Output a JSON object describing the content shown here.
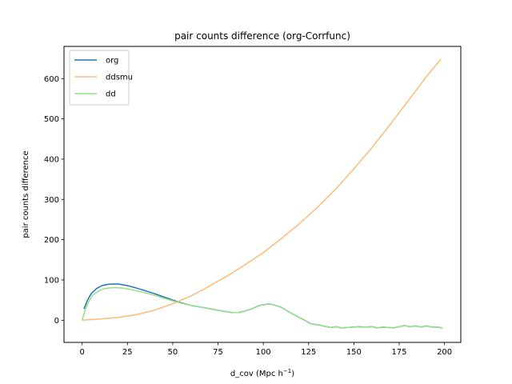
{
  "chart_data": {
    "type": "line",
    "title": "pair counts difference (org-Corrfunc)",
    "xlabel": "d_cov (Mpc h",
    "xlabel_sup": "−1",
    "xlabel_close": ")",
    "ylabel": "pair counts difference",
    "xlim": [
      -10,
      209
    ],
    "ylim": [
      -55,
      680
    ],
    "xticks": [
      0,
      25,
      50,
      75,
      100,
      125,
      150,
      175,
      200
    ],
    "yticks": [
      0,
      100,
      200,
      300,
      400,
      500,
      600
    ],
    "legend_position": "upper-left",
    "series": [
      {
        "name": "org",
        "color": "#1f77b4",
        "points": [
          [
            1,
            28
          ],
          [
            3,
            50
          ],
          [
            5,
            66
          ],
          [
            8,
            79
          ],
          [
            11,
            86
          ],
          [
            14,
            89
          ],
          [
            17,
            90
          ],
          [
            20,
            90
          ],
          [
            25,
            86
          ],
          [
            30,
            80
          ],
          [
            35,
            73
          ],
          [
            40,
            66
          ],
          [
            45,
            58
          ],
          [
            50,
            50
          ],
          [
            55,
            43
          ],
          [
            60,
            37
          ],
          [
            65,
            33
          ],
          [
            70,
            29
          ],
          [
            75,
            25
          ],
          [
            80,
            21
          ],
          [
            83,
            19
          ],
          [
            86,
            19
          ],
          [
            90,
            23
          ],
          [
            94,
            29
          ],
          [
            98,
            37
          ],
          [
            102,
            40
          ],
          [
            104,
            40
          ],
          [
            106,
            38
          ],
          [
            110,
            32
          ],
          [
            113,
            24
          ],
          [
            116,
            16
          ],
          [
            119,
            9
          ],
          [
            122,
            2
          ],
          [
            124,
            -3
          ],
          [
            126,
            -8
          ],
          [
            128,
            -10
          ],
          [
            131,
            -12
          ],
          [
            134,
            -15
          ],
          [
            137,
            -18
          ],
          [
            140,
            -16
          ],
          [
            143,
            -19
          ],
          [
            146,
            -18
          ],
          [
            150,
            -17
          ],
          [
            153,
            -16
          ],
          [
            156,
            -17
          ],
          [
            160,
            -16
          ],
          [
            163,
            -19
          ],
          [
            166,
            -17
          ],
          [
            169,
            -18
          ],
          [
            172,
            -19
          ],
          [
            175,
            -16
          ],
          [
            178,
            -13
          ],
          [
            181,
            -16
          ],
          [
            184,
            -14
          ],
          [
            187,
            -17
          ],
          [
            190,
            -14
          ],
          [
            193,
            -17
          ],
          [
            196,
            -17
          ],
          [
            199,
            -19
          ]
        ]
      },
      {
        "name": "ddsmu",
        "color": "#ffbb78",
        "points": [
          [
            0,
            0
          ],
          [
            10,
            3
          ],
          [
            20,
            7
          ],
          [
            30,
            14
          ],
          [
            40,
            25
          ],
          [
            50,
            41
          ],
          [
            60,
            60
          ],
          [
            70,
            84
          ],
          [
            80,
            110
          ],
          [
            90,
            138
          ],
          [
            100,
            168
          ],
          [
            110,
            203
          ],
          [
            120,
            240
          ],
          [
            130,
            281
          ],
          [
            140,
            326
          ],
          [
            150,
            376
          ],
          [
            160,
            429
          ],
          [
            170,
            486
          ],
          [
            180,
            545
          ],
          [
            190,
            605
          ],
          [
            198,
            648
          ]
        ]
      },
      {
        "name": "dd",
        "color": "#98df8a",
        "points": [
          [
            0,
            0
          ],
          [
            2,
            30
          ],
          [
            4,
            50
          ],
          [
            6,
            63
          ],
          [
            9,
            72
          ],
          [
            12,
            78
          ],
          [
            15,
            80
          ],
          [
            18,
            81
          ],
          [
            22,
            80
          ],
          [
            26,
            77
          ],
          [
            30,
            73
          ],
          [
            35,
            68
          ],
          [
            40,
            62
          ],
          [
            45,
            55
          ],
          [
            50,
            48
          ],
          [
            55,
            42
          ],
          [
            60,
            37
          ],
          [
            65,
            33
          ],
          [
            70,
            29
          ],
          [
            75,
            25
          ],
          [
            80,
            21
          ],
          [
            83,
            19
          ],
          [
            86,
            19
          ],
          [
            90,
            23
          ],
          [
            94,
            29
          ],
          [
            98,
            37
          ],
          [
            102,
            40
          ],
          [
            104,
            40
          ],
          [
            106,
            38
          ],
          [
            110,
            32
          ],
          [
            113,
            24
          ],
          [
            116,
            16
          ],
          [
            119,
            9
          ],
          [
            122,
            2
          ],
          [
            124,
            -3
          ],
          [
            126,
            -8
          ],
          [
            128,
            -10
          ],
          [
            131,
            -12
          ],
          [
            134,
            -15
          ],
          [
            137,
            -18
          ],
          [
            140,
            -16
          ],
          [
            143,
            -19
          ],
          [
            146,
            -18
          ],
          [
            150,
            -17
          ],
          [
            153,
            -16
          ],
          [
            156,
            -17
          ],
          [
            160,
            -16
          ],
          [
            163,
            -19
          ],
          [
            166,
            -17
          ],
          [
            169,
            -18
          ],
          [
            172,
            -19
          ],
          [
            175,
            -16
          ],
          [
            178,
            -13
          ],
          [
            181,
            -16
          ],
          [
            184,
            -14
          ],
          [
            187,
            -17
          ],
          [
            190,
            -14
          ],
          [
            193,
            -17
          ],
          [
            196,
            -17
          ],
          [
            199,
            -19
          ]
        ]
      }
    ]
  }
}
